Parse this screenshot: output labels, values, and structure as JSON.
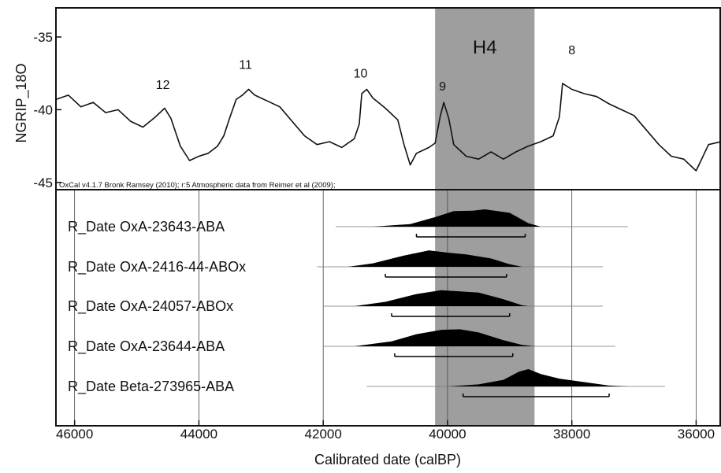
{
  "chart_data": [
    {
      "type": "line",
      "ylabel": "NGRIP_18O",
      "xlim": [
        46300,
        35600
      ],
      "ylim": [
        -45.5,
        -33
      ],
      "yticks": [
        -35,
        -40,
        -45
      ],
      "credit": "OxCal v4.1.7 Bronk Ramsey (2010); r:5 Atmospheric data from Reimer et al (2009);",
      "band": {
        "label": "H4",
        "from": 40200,
        "to": 38600,
        "color": "#9e9e9e"
      },
      "events": [
        {
          "label": "12",
          "x": 44580,
          "y": -38.8
        },
        {
          "label": "11",
          "x": 43250,
          "y": -37.4
        },
        {
          "label": "10",
          "x": 41400,
          "y": -38.0
        },
        {
          "label": "9",
          "x": 40080,
          "y": -38.9
        },
        {
          "label": "8",
          "x": 38000,
          "y": -36.4
        }
      ],
      "series": [
        {
          "values": [
            [
              46300,
              -39.3
            ],
            [
              46100,
              -39.0
            ],
            [
              45900,
              -39.8
            ],
            [
              45700,
              -39.5
            ],
            [
              45500,
              -40.2
            ],
            [
              45300,
              -40.0
            ],
            [
              45100,
              -40.8
            ],
            [
              44900,
              -41.2
            ],
            [
              44700,
              -40.5
            ],
            [
              44550,
              -39.9
            ],
            [
              44450,
              -40.6
            ],
            [
              44300,
              -42.5
            ],
            [
              44150,
              -43.5
            ],
            [
              44000,
              -43.2
            ],
            [
              43850,
              -43.0
            ],
            [
              43700,
              -42.5
            ],
            [
              43600,
              -41.8
            ],
            [
              43500,
              -40.5
            ],
            [
              43400,
              -39.3
            ],
            [
              43300,
              -39.0
            ],
            [
              43200,
              -38.6
            ],
            [
              43100,
              -39.0
            ],
            [
              42900,
              -39.4
            ],
            [
              42700,
              -39.8
            ],
            [
              42500,
              -40.8
            ],
            [
              42300,
              -41.8
            ],
            [
              42100,
              -42.4
            ],
            [
              41900,
              -42.2
            ],
            [
              41700,
              -42.6
            ],
            [
              41500,
              -42.0
            ],
            [
              41420,
              -41.0
            ],
            [
              41380,
              -38.9
            ],
            [
              41300,
              -38.6
            ],
            [
              41200,
              -39.2
            ],
            [
              41000,
              -39.9
            ],
            [
              40800,
              -40.7
            ],
            [
              40700,
              -42.4
            ],
            [
              40600,
              -43.8
            ],
            [
              40500,
              -43.0
            ],
            [
              40400,
              -42.8
            ],
            [
              40300,
              -42.6
            ],
            [
              40200,
              -42.3
            ],
            [
              40120,
              -40.5
            ],
            [
              40060,
              -39.5
            ],
            [
              39980,
              -40.6
            ],
            [
              39900,
              -42.4
            ],
            [
              39700,
              -43.2
            ],
            [
              39500,
              -43.4
            ],
            [
              39300,
              -42.9
            ],
            [
              39100,
              -43.4
            ],
            [
              38900,
              -42.9
            ],
            [
              38700,
              -42.5
            ],
            [
              38500,
              -42.2
            ],
            [
              38300,
              -41.8
            ],
            [
              38200,
              -40.5
            ],
            [
              38150,
              -38.2
            ],
            [
              38000,
              -38.6
            ],
            [
              37800,
              -38.9
            ],
            [
              37600,
              -39.1
            ],
            [
              37400,
              -39.6
            ],
            [
              37200,
              -40.0
            ],
            [
              37000,
              -40.4
            ],
            [
              36800,
              -41.4
            ],
            [
              36600,
              -42.4
            ],
            [
              36400,
              -43.2
            ],
            [
              36200,
              -43.4
            ],
            [
              36000,
              -44.2
            ],
            [
              35800,
              -42.4
            ],
            [
              35600,
              -42.2
            ]
          ]
        }
      ]
    },
    {
      "type": "area",
      "xlabel": "Calibrated date (calBP)",
      "xlim": [
        46300,
        35600
      ],
      "xticks": [
        46000,
        44000,
        42000,
        40000,
        38000,
        36000
      ],
      "series": [
        {
          "name": "R_Date OxA-23643-ABA",
          "range": [
            41800,
            37100
          ],
          "hpd": [
            40500,
            38750
          ],
          "density": [
            [
              41200,
              0
            ],
            [
              40600,
              0.15
            ],
            [
              40200,
              0.55
            ],
            [
              39900,
              0.9
            ],
            [
              39600,
              0.92
            ],
            [
              39400,
              1.0
            ],
            [
              39000,
              0.8
            ],
            [
              38700,
              0.2
            ],
            [
              38500,
              0
            ]
          ]
        },
        {
          "name": "R_Date OxA-2416-44-ABOx",
          "range": [
            42100,
            37500
          ],
          "hpd": [
            41000,
            39050
          ],
          "density": [
            [
              41600,
              0
            ],
            [
              41200,
              0.2
            ],
            [
              40700,
              0.65
            ],
            [
              40300,
              0.95
            ],
            [
              40000,
              0.82
            ],
            [
              39700,
              0.72
            ],
            [
              39300,
              0.48
            ],
            [
              39000,
              0.15
            ],
            [
              38800,
              0
            ]
          ]
        },
        {
          "name": "R_Date OxA-24057-ABOx",
          "range": [
            42000,
            37500
          ],
          "hpd": [
            40900,
            39000
          ],
          "density": [
            [
              41500,
              0
            ],
            [
              41000,
              0.25
            ],
            [
              40500,
              0.7
            ],
            [
              40100,
              0.92
            ],
            [
              39800,
              0.85
            ],
            [
              39500,
              0.78
            ],
            [
              39100,
              0.4
            ],
            [
              38800,
              0.05
            ],
            [
              38700,
              0
            ]
          ]
        },
        {
          "name": "R_Date OxA-23644-ABA",
          "range": [
            42000,
            37300
          ],
          "hpd": [
            40850,
            38950
          ],
          "density": [
            [
              41500,
              0
            ],
            [
              40900,
              0.28
            ],
            [
              40500,
              0.7
            ],
            [
              40100,
              0.95
            ],
            [
              39800,
              0.98
            ],
            [
              39500,
              0.8
            ],
            [
              39100,
              0.35
            ],
            [
              38800,
              0.08
            ],
            [
              38600,
              0
            ]
          ]
        },
        {
          "name": "R_Date Beta-273965-ABA",
          "range": [
            41300,
            36500
          ],
          "hpd": [
            39750,
            37400
          ],
          "density": [
            [
              40000,
              0
            ],
            [
              39500,
              0.12
            ],
            [
              39100,
              0.38
            ],
            [
              38850,
              0.85
            ],
            [
              38700,
              1.0
            ],
            [
              38500,
              0.72
            ],
            [
              38200,
              0.45
            ],
            [
              37800,
              0.25
            ],
            [
              37400,
              0.05
            ],
            [
              37100,
              0
            ]
          ]
        }
      ]
    }
  ]
}
